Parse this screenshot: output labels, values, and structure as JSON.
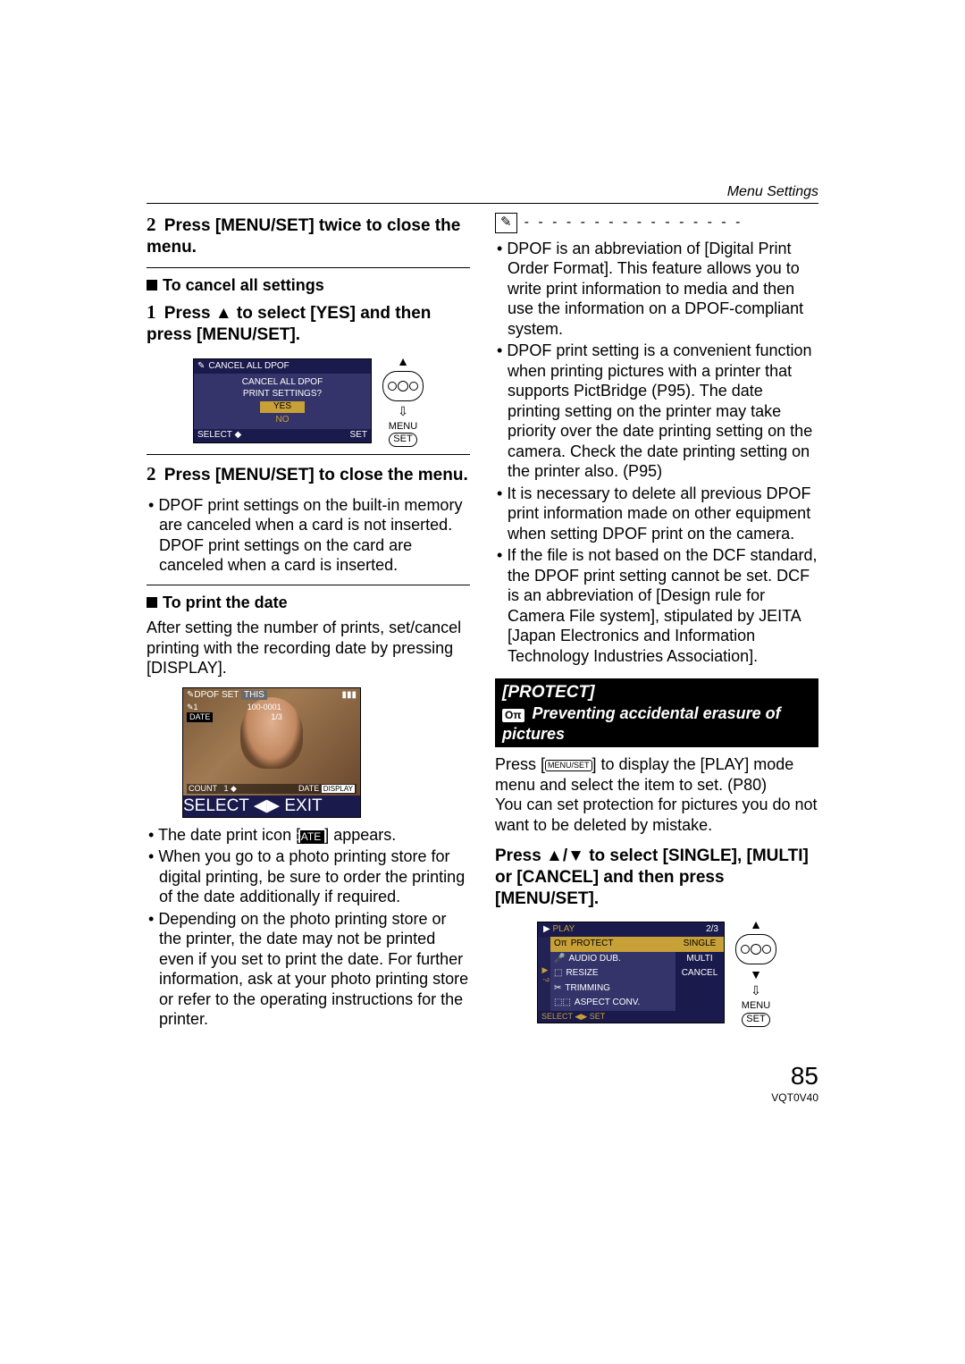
{
  "header": {
    "section": "Menu Settings"
  },
  "left": {
    "step2a": {
      "num": "2",
      "text": "Press [MENU/SET] twice to close the menu."
    },
    "cancel_head": "To cancel all settings",
    "step1": {
      "num": "1",
      "text": "Press ▲ to select [YES] and then press [MENU/SET]."
    },
    "dialog": {
      "top_icon": "✎",
      "top_label": "CANCEL ALL DPOF",
      "line1": "CANCEL ALL DPOF",
      "line2": "PRINT SETTINGS?",
      "yes": "YES",
      "no": "NO",
      "select": "SELECT",
      "set": "SET"
    },
    "controls": {
      "menu": "MENU",
      "set": "SET"
    },
    "step2b": {
      "num": "2",
      "text": "Press [MENU/SET] to close the menu."
    },
    "step2b_bullet": "DPOF print settings on the built-in memory are canceled when a card is not inserted. DPOF print settings on the card are canceled when a card is inserted.",
    "print_head": "To print the date",
    "print_body": "After setting the number of prints, set/cancel printing with the recording date by pressing [DISPLAY].",
    "photo": {
      "top_left": "DPOF SET",
      "tab": "THIS",
      "battery": "▮▮▮",
      "file": "100-0001",
      "date_badge": "DATE",
      "frac": "1/3",
      "count_label": "COUNT",
      "count_val": "1",
      "date_btn_prefix": "DATE",
      "date_btn": "DISPLAY",
      "select": "SELECT",
      "exit": "EXIT"
    },
    "date_line_a": "The date print icon [",
    "date_line_badge": "DATE",
    "date_line_b": "] appears.",
    "b2": "When you go to a photo printing store for digital printing, be sure to order the printing of the date additionally if required.",
    "b3": "Depending on the photo printing store or the printer, the date may not be printed even if you set to print the date. For further information, ask at your photo printing store or refer to the operating instructions for the printer."
  },
  "right": {
    "note_icon": "✎",
    "dashes": "- - - - - - - - - - - - - - - -",
    "n1": "DPOF is an abbreviation of [Digital Print Order Format]. This feature allows you to write print information to media and then use the information on a DPOF-compliant system.",
    "n2": "DPOF print setting is a convenient function when printing pictures with a printer that supports PictBridge (P95). The date printing setting on the printer may take priority over the date printing setting on the camera. Check the date printing setting on the printer also. (P95)",
    "n3": "It is necessary to delete all previous DPOF print information made on other equipment when setting DPOF print on the camera.",
    "n4": "If the file is not based on the DCF standard, the DPOF print setting cannot be set. DCF is an abbreviation of [Design rule for Camera File system], stipulated by JEITA [Japan Electronics and Information Technology Industries Association].",
    "protect": {
      "title": "[PROTECT]",
      "icon": "Oπ",
      "subtitle": "Preventing accidental erasure of pictures"
    },
    "protect_body_a": "Press [",
    "protect_body_icon": "MENU/SET",
    "protect_body_b": "] to display the [PLAY] mode menu and select the item to set. (P80)",
    "protect_body2": "You can set protection for pictures you do not want to be deleted by mistake.",
    "protect_step": "Press ▲/▼ to select [SINGLE], [MULTI] or [CANCEL] and then press [MENU/SET].",
    "play": {
      "title": "PLAY",
      "page": "2/3",
      "items": [
        {
          "icon": "Oπ",
          "label": "PROTECT",
          "sel": true
        },
        {
          "icon": "🎤",
          "label": "AUDIO DUB.",
          "sel": false
        },
        {
          "icon": "⬚",
          "label": "RESIZE",
          "sel": false
        },
        {
          "icon": "✂",
          "label": "TRIMMING",
          "sel": false
        },
        {
          "icon": "⬚⬚",
          "label": "ASPECT CONV.",
          "sel": false
        }
      ],
      "opts": [
        {
          "label": "SINGLE",
          "sel": true
        },
        {
          "label": "MULTI",
          "sel": false
        },
        {
          "label": "CANCEL",
          "sel": false
        }
      ],
      "bottom": "SELECT ◀▶  SET"
    },
    "controls": {
      "menu": "MENU",
      "set": "SET"
    }
  },
  "footer": {
    "page": "85",
    "docid": "VQT0V40"
  }
}
